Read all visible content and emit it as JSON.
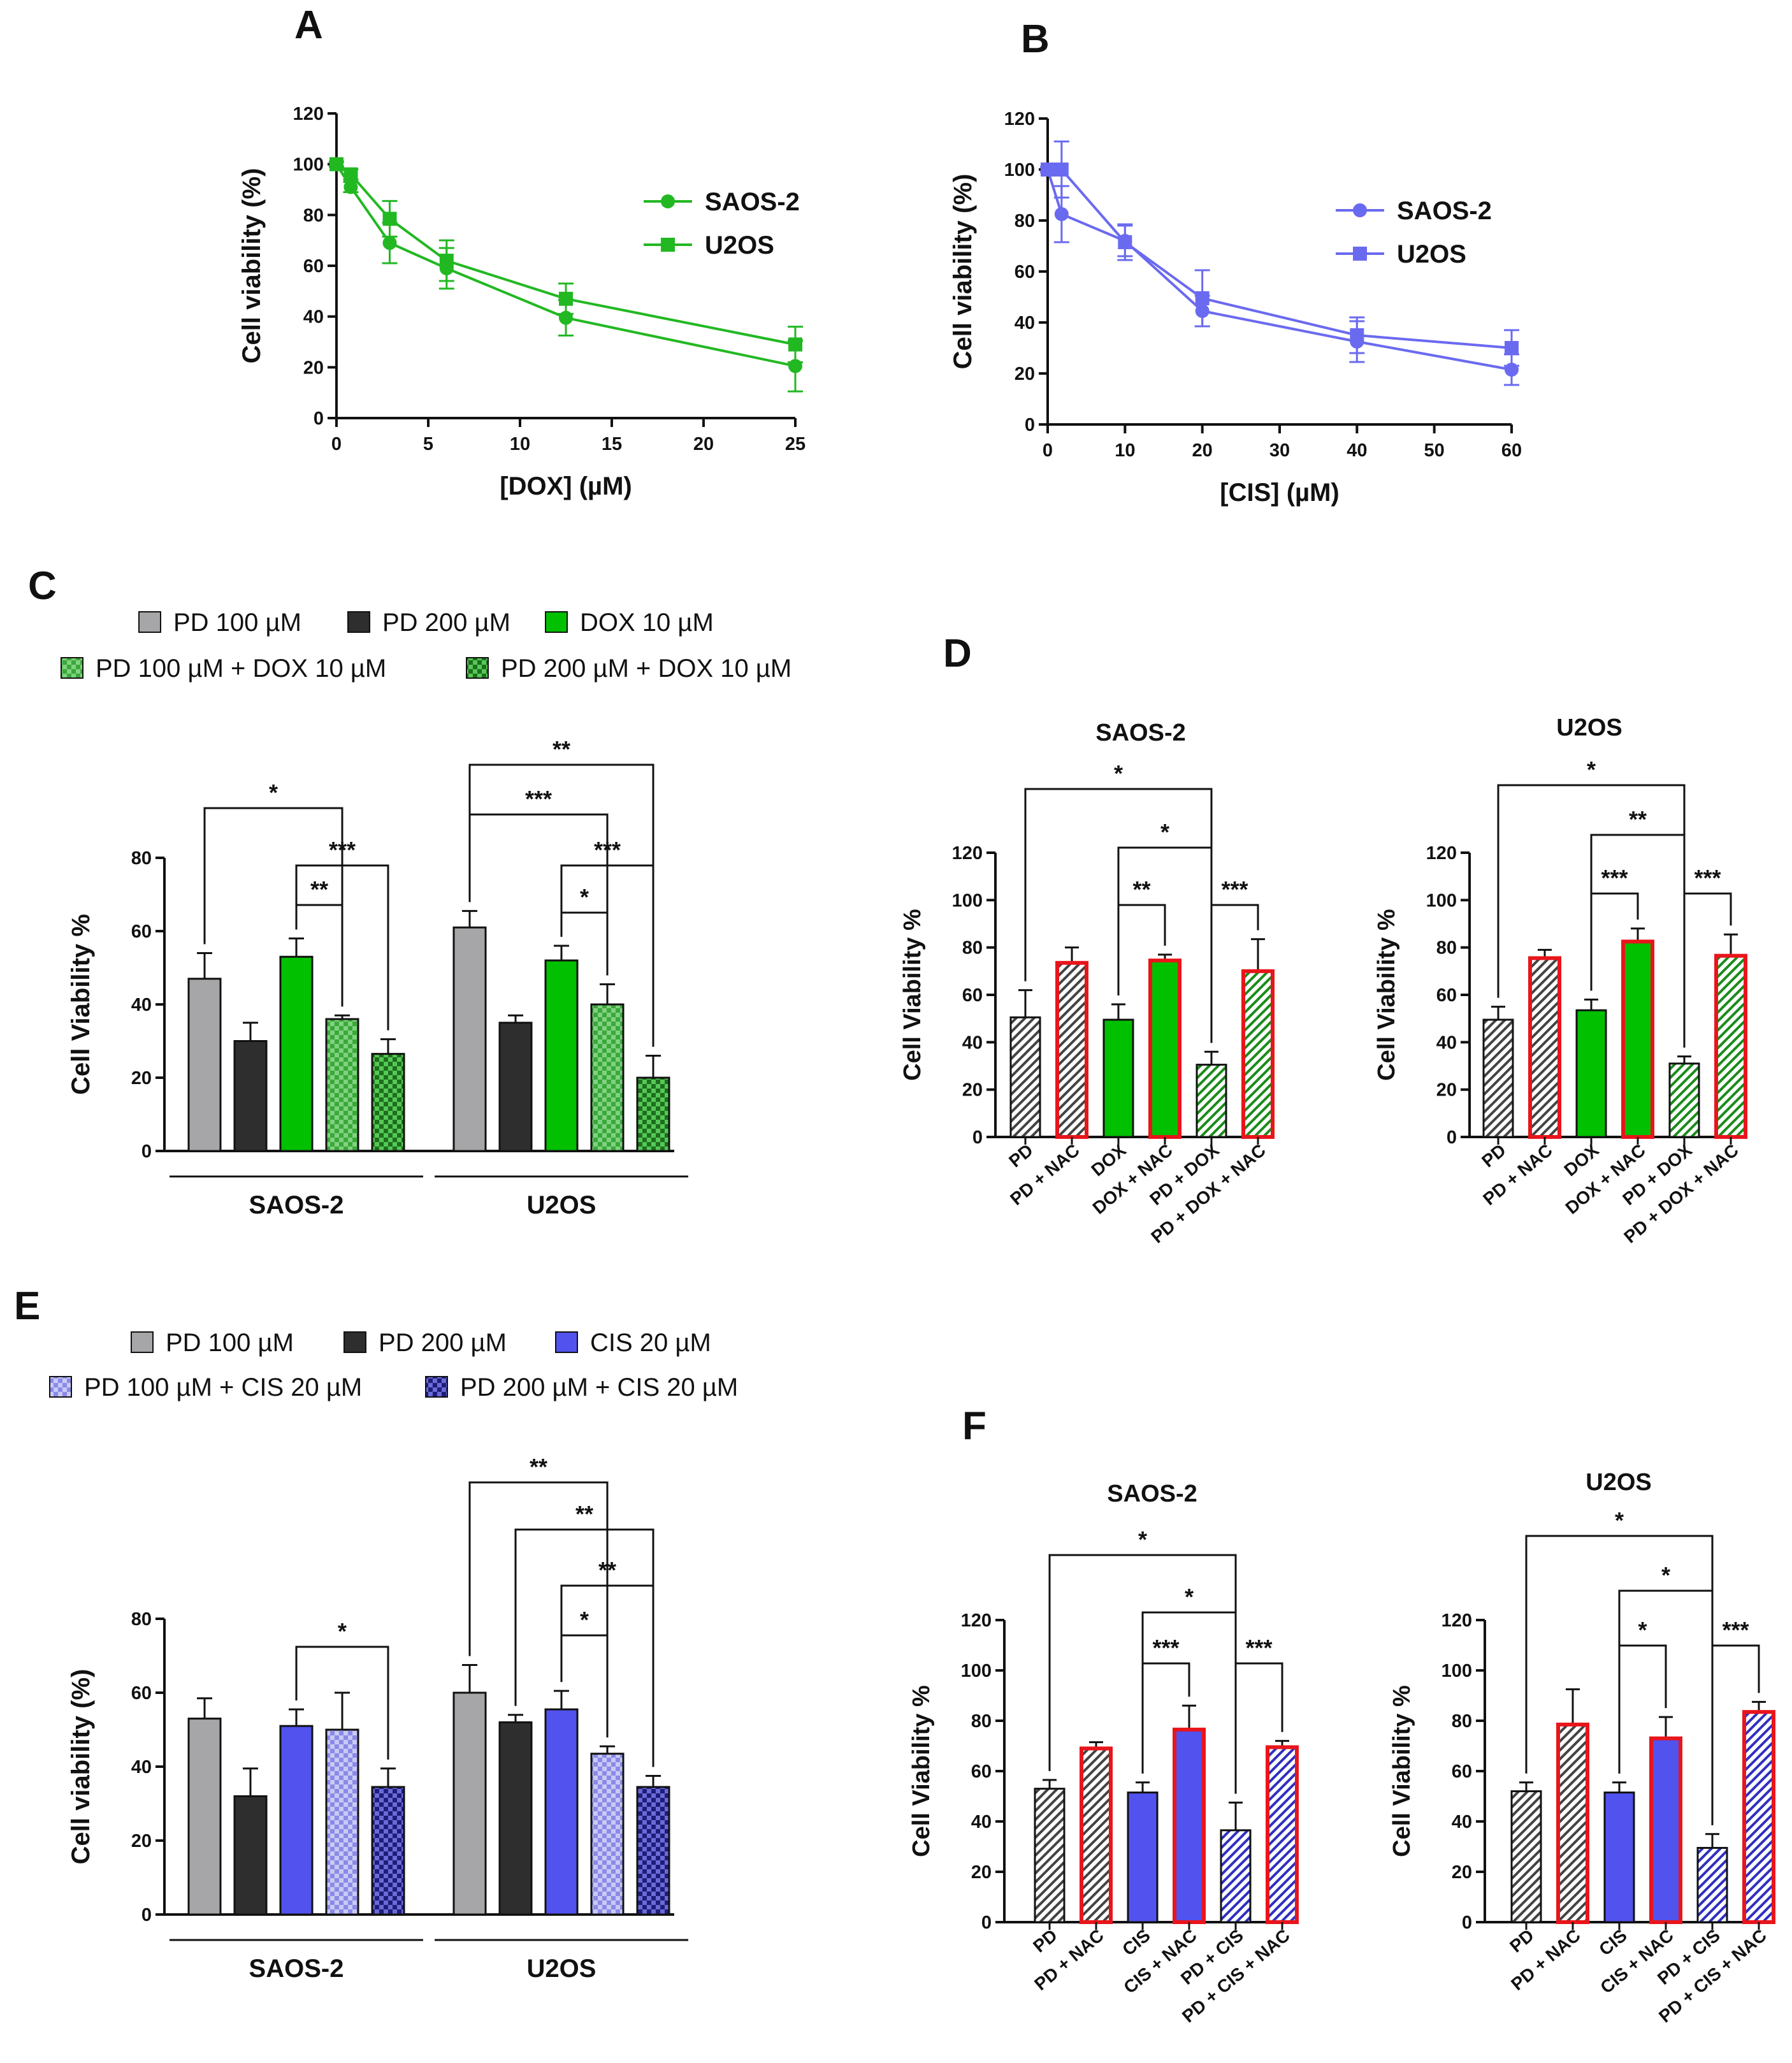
{
  "chart_data": [
    {
      "panel": "A",
      "type": "line",
      "xlabel": "[DOX] (µM)",
      "ylabel": "Cell viability (%)",
      "xlim": [
        0,
        25
      ],
      "ylim": [
        0,
        120
      ],
      "xticks": [
        0,
        5,
        10,
        15,
        20,
        25
      ],
      "yticks": [
        0,
        20,
        40,
        60,
        80,
        100,
        120
      ],
      "color": "#22b822",
      "legend_position": "top-right",
      "series": [
        {
          "name": "SAOS-2",
          "marker": "circle",
          "x": [
            0,
            0.78,
            2.9,
            6.0,
            12.5,
            25
          ],
          "y": [
            100,
            91,
            69,
            59,
            39.5,
            20.5
          ],
          "err": [
            1,
            2,
            8,
            8,
            7,
            10
          ]
        },
        {
          "name": "U2OS",
          "marker": "square",
          "x": [
            0,
            0.78,
            2.9,
            6.0,
            12.5,
            25
          ],
          "y": [
            100,
            96,
            78.5,
            62,
            47,
            29
          ],
          "err": [
            1,
            2,
            7,
            8,
            6,
            7
          ]
        }
      ]
    },
    {
      "panel": "B",
      "type": "line",
      "xlabel": "[CIS] (µM)",
      "ylabel": "Cell viability (%)",
      "xlim": [
        0,
        60
      ],
      "ylim": [
        0,
        120
      ],
      "xticks": [
        0,
        10,
        20,
        30,
        40,
        50,
        60
      ],
      "yticks": [
        0,
        20,
        40,
        60,
        80,
        100,
        120
      ],
      "color": "#6a6af0",
      "legend_position": "top-right",
      "series": [
        {
          "name": "SAOS-2",
          "marker": "circle",
          "x": [
            0,
            1.8,
            10,
            20,
            40,
            60
          ],
          "y": [
            100,
            82.5,
            72,
            44.5,
            32.5,
            21.5
          ],
          "err": [
            1,
            11,
            6,
            6,
            8,
            6
          ]
        },
        {
          "name": "U2OS",
          "marker": "square",
          "x": [
            0,
            1.8,
            10,
            20,
            40,
            60
          ],
          "y": [
            100,
            100,
            71.5,
            49.5,
            35,
            30
          ],
          "err": [
            1,
            11,
            7,
            11,
            7,
            7
          ]
        }
      ]
    },
    {
      "panel": "C",
      "type": "bar",
      "ylabel": "Cell Viability %",
      "ylim": [
        0,
        80
      ],
      "yticks": [
        0,
        20,
        40,
        60,
        80
      ],
      "legend": [
        "PD 100 µM",
        "PD 200 µM",
        "DOX 10 µM",
        "PD 100 µM + DOX 10 µM",
        "PD 200 µM + DOX 10 µM"
      ],
      "groups": [
        {
          "name": "SAOS-2",
          "values": [
            47,
            30,
            53,
            36,
            26.5
          ],
          "err": [
            7,
            5,
            5,
            1,
            4
          ]
        },
        {
          "name": "U2OS",
          "values": [
            61,
            35,
            52,
            40,
            20
          ],
          "err": [
            4.5,
            2,
            4,
            5.5,
            6
          ]
        }
      ],
      "significance": [
        "*",
        "***",
        "**",
        "**",
        "***",
        "***",
        "*"
      ]
    },
    {
      "panel": "D",
      "type": "bar",
      "ylabel": "Cell Viability %",
      "ylim": [
        0,
        120
      ],
      "yticks": [
        0,
        20,
        40,
        60,
        80,
        100,
        120
      ],
      "categories": [
        "PD",
        "PD + NAC",
        "DOX",
        "DOX + NAC",
        "PD + DOX",
        "PD + DOX + NAC"
      ],
      "subplots": [
        {
          "title": "SAOS-2",
          "values": [
            50.5,
            73.5,
            49.5,
            74.5,
            30.5,
            70
          ],
          "err": [
            11.5,
            6.5,
            6.5,
            2.5,
            5.5,
            13.5
          ],
          "significance": [
            "*",
            "*",
            "**",
            "***"
          ]
        },
        {
          "title": "U2OS",
          "values": [
            49.5,
            75.5,
            53.5,
            82.5,
            31,
            76.5
          ],
          "err": [
            5.5,
            3.5,
            4.5,
            5.5,
            3,
            9
          ],
          "significance": [
            "*",
            "**",
            "***",
            "***"
          ]
        }
      ]
    },
    {
      "panel": "E",
      "type": "bar",
      "ylabel": "Cell viability (%)",
      "ylim": [
        0,
        80
      ],
      "yticks": [
        0,
        20,
        40,
        60,
        80
      ],
      "legend": [
        "PD 100 µM",
        "PD 200 µM",
        "CIS 20 µM",
        "PD 100 µM + CIS 20 µM",
        "PD 200 µM + CIS 20 µM"
      ],
      "groups": [
        {
          "name": "SAOS-2",
          "values": [
            53,
            32,
            51,
            50,
            34.5
          ],
          "err": [
            5.5,
            7.5,
            4.5,
            10,
            5
          ]
        },
        {
          "name": "U2OS",
          "values": [
            60,
            52,
            55.5,
            43.5,
            34.5
          ],
          "err": [
            7.5,
            2,
            5,
            2,
            3
          ]
        }
      ],
      "significance": [
        "*",
        "**",
        "**",
        "**",
        "*"
      ]
    },
    {
      "panel": "F",
      "type": "bar",
      "ylabel": "Cell Viability %",
      "ylim": [
        0,
        120
      ],
      "yticks": [
        0,
        20,
        40,
        60,
        80,
        100,
        120
      ],
      "categories": [
        "PD",
        "PD + NAC",
        "CIS",
        "CIS + NAC",
        "PD + CIS",
        "PD + CIS + NAC"
      ],
      "subplots": [
        {
          "title": "SAOS-2",
          "values": [
            53,
            69,
            51.5,
            76.5,
            36.5,
            69.5
          ],
          "err": [
            3.5,
            2.5,
            4,
            9.5,
            11,
            2.5
          ],
          "significance": [
            "*",
            "*",
            "***",
            "***"
          ]
        },
        {
          "title": "U2OS",
          "values": [
            52,
            78.5,
            51.5,
            73,
            29.5,
            83.5
          ],
          "err": [
            3.5,
            14,
            4,
            8.5,
            5.5,
            4
          ]
        },
        {
          "significance": [
            "*",
            "*",
            "*",
            "***"
          ]
        }
      ]
    }
  ],
  "colors": {
    "green": "#00c000",
    "blue": "#5252ee",
    "gray": "#a6a6a8",
    "dark": "#2e2e2e",
    "nac_border": "#e8151b",
    "line_green": "#22b822",
    "line_blue": "#6a6af0"
  }
}
